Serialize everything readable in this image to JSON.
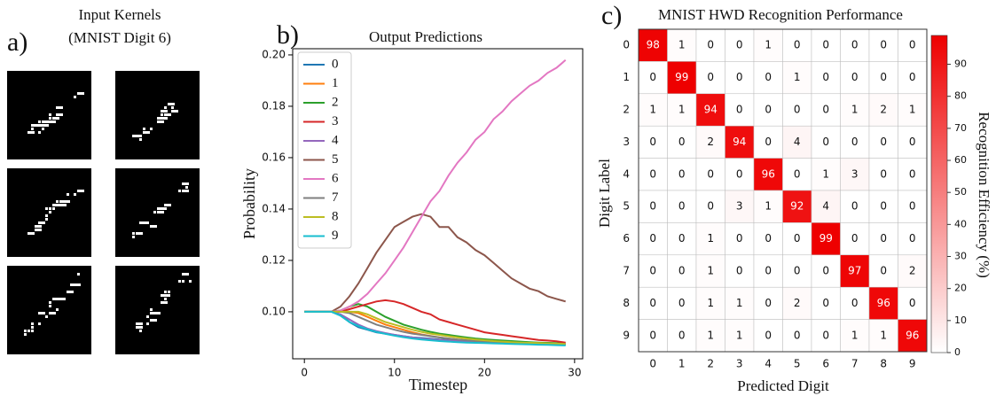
{
  "chart_data": [
    {
      "type": "image",
      "panel_label": "a)",
      "title": "Input Kernels",
      "subtitle": "(MNIST Digit 6)"
    },
    {
      "type": "line",
      "panel_label": "b)",
      "title": "Output Predictions",
      "x_label": "Timestep",
      "y_label": "Probability",
      "x": [
        0,
        1,
        2,
        3,
        4,
        5,
        6,
        7,
        8,
        9,
        10,
        11,
        12,
        13,
        14,
        15,
        16,
        17,
        18,
        19,
        20,
        21,
        22,
        23,
        24,
        25,
        26,
        27,
        28,
        29
      ],
      "xlim": [
        -1.3,
        30.9
      ],
      "xticks": [
        0,
        10,
        20,
        30
      ],
      "ylim": [
        0.0817,
        0.2024
      ],
      "yticks": [
        {
          "value": 0.1,
          "label": "0.10"
        },
        0.12,
        0.14,
        0.16,
        0.18,
        {
          "value": 0.2,
          "label": "0.20"
        }
      ],
      "legend": "upper-left",
      "series": [
        {
          "name": "0",
          "color": "#1f77b4",
          "values": [
            0.1,
            0.1,
            0.1,
            0.1,
            0.099,
            0.096,
            0.094,
            0.093,
            0.092,
            0.0915,
            0.091,
            0.0905,
            0.09,
            0.0898,
            0.0895,
            0.0892,
            0.089,
            0.0888,
            0.0886,
            0.0884,
            0.0882,
            0.088,
            0.0879,
            0.0878,
            0.0877,
            0.0876,
            0.0875,
            0.0874,
            0.0873,
            0.0872
          ]
        },
        {
          "name": "1",
          "color": "#ff7f0e",
          "values": [
            0.1,
            0.1,
            0.1,
            0.1,
            0.1,
            0.1,
            0.0995,
            0.098,
            0.0965,
            0.095,
            0.094,
            0.093,
            0.092,
            0.0912,
            0.0906,
            0.09,
            0.0896,
            0.0892,
            0.0889,
            0.0886,
            0.0884,
            0.0882,
            0.088,
            0.0879,
            0.0878,
            0.0877,
            0.0876,
            0.0875,
            0.0874,
            0.0873
          ]
        },
        {
          "name": "2",
          "color": "#2ca02c",
          "values": [
            0.1,
            0.1,
            0.1,
            0.1,
            0.1005,
            0.102,
            0.103,
            0.102,
            0.1,
            0.098,
            0.0965,
            0.095,
            0.094,
            0.093,
            0.0922,
            0.0915,
            0.091,
            0.0905,
            0.09,
            0.0896,
            0.0893,
            0.089,
            0.0888,
            0.0886,
            0.0884,
            0.0882,
            0.088,
            0.0879,
            0.0878,
            0.0877
          ]
        },
        {
          "name": "3",
          "color": "#d62728",
          "values": [
            0.1,
            0.1,
            0.1,
            0.1,
            0.1,
            0.101,
            0.102,
            0.103,
            0.104,
            0.1045,
            0.104,
            0.103,
            0.1015,
            0.1,
            0.099,
            0.097,
            0.096,
            0.095,
            0.094,
            0.093,
            0.092,
            0.0915,
            0.091,
            0.0905,
            0.09,
            0.0895,
            0.089,
            0.0888,
            0.0885,
            0.088
          ]
        },
        {
          "name": "4",
          "color": "#9467bd",
          "values": [
            0.1,
            0.1,
            0.1,
            0.1,
            0.099,
            0.097,
            0.095,
            0.0935,
            0.0925,
            0.0917,
            0.091,
            0.0905,
            0.09,
            0.0896,
            0.0893,
            0.089,
            0.0888,
            0.0886,
            0.0884,
            0.0882,
            0.088,
            0.0879,
            0.0878,
            0.0877,
            0.0876,
            0.0875,
            0.0874,
            0.0873,
            0.0872,
            0.0871
          ]
        },
        {
          "name": "5",
          "color": "#8c564b",
          "values": [
            0.1,
            0.1,
            0.1,
            0.1,
            0.102,
            0.106,
            0.111,
            0.117,
            0.123,
            0.128,
            0.133,
            0.135,
            0.137,
            0.138,
            0.137,
            0.133,
            0.133,
            0.129,
            0.127,
            0.124,
            0.122,
            0.119,
            0.116,
            0.113,
            0.111,
            0.109,
            0.108,
            0.106,
            0.105,
            0.104
          ]
        },
        {
          "name": "6",
          "color": "#e377c2",
          "values": [
            0.1,
            0.1,
            0.1,
            0.1,
            0.1005,
            0.102,
            0.104,
            0.107,
            0.111,
            0.115,
            0.12,
            0.125,
            0.131,
            0.137,
            0.143,
            0.147,
            0.153,
            0.158,
            0.162,
            0.167,
            0.17,
            0.175,
            0.178,
            0.182,
            0.185,
            0.188,
            0.19,
            0.193,
            0.195,
            0.198
          ]
        },
        {
          "name": "7",
          "color": "#7f7f7f",
          "values": [
            0.1,
            0.1,
            0.1,
            0.1,
            0.1,
            0.0995,
            0.098,
            0.0965,
            0.095,
            0.094,
            0.093,
            0.0922,
            0.0915,
            0.091,
            0.0905,
            0.09,
            0.0896,
            0.0892,
            0.0889,
            0.0886,
            0.0884,
            0.0882,
            0.088,
            0.0879,
            0.0878,
            0.0877,
            0.0876,
            0.0875,
            0.0874,
            0.0873
          ]
        },
        {
          "name": "8",
          "color": "#bcbd22",
          "values": [
            0.1,
            0.1,
            0.1,
            0.1,
            0.1,
            0.1,
            0.1,
            0.099,
            0.0975,
            0.096,
            0.095,
            0.094,
            0.093,
            0.0922,
            0.0915,
            0.091,
            0.0905,
            0.09,
            0.0896,
            0.0892,
            0.0889,
            0.0886,
            0.0884,
            0.0882,
            0.088,
            0.0879,
            0.0878,
            0.0877,
            0.0876,
            0.0875
          ]
        },
        {
          "name": "9",
          "color": "#17becf",
          "values": [
            0.1,
            0.1,
            0.1,
            0.1,
            0.0985,
            0.096,
            0.0945,
            0.0932,
            0.0922,
            0.0914,
            0.0907,
            0.0901,
            0.0896,
            0.0892,
            0.0889,
            0.0886,
            0.0884,
            0.0882,
            0.088,
            0.0879,
            0.0878,
            0.0877,
            0.0876,
            0.0875,
            0.0874,
            0.0873,
            0.0872,
            0.0871,
            0.087,
            0.0869
          ]
        }
      ]
    },
    {
      "type": "heatmap",
      "panel_label": "c)",
      "title": "MNIST HWD Recognition Performance",
      "x_label": "Predicted Digit",
      "y_label": "Digit Label",
      "colorbar_label": "Recognition Efficiency (%)",
      "x_categories": [
        "0",
        "1",
        "2",
        "3",
        "4",
        "5",
        "6",
        "7",
        "8",
        "9"
      ],
      "y_categories": [
        "0",
        "1",
        "2",
        "3",
        "4",
        "5",
        "6",
        "7",
        "8",
        "9"
      ],
      "clim": [
        0,
        99
      ],
      "cticks": [
        0,
        10,
        20,
        30,
        40,
        50,
        60,
        70,
        80,
        90
      ],
      "color": "#ee0000",
      "matrix": [
        [
          98,
          1,
          0,
          0,
          1,
          0,
          0,
          0,
          0,
          0
        ],
        [
          0,
          99,
          0,
          0,
          0,
          1,
          0,
          0,
          0,
          0
        ],
        [
          1,
          1,
          94,
          0,
          0,
          0,
          0,
          1,
          2,
          1
        ],
        [
          0,
          0,
          2,
          94,
          0,
          4,
          0,
          0,
          0,
          0
        ],
        [
          0,
          0,
          0,
          0,
          96,
          0,
          1,
          3,
          0,
          0
        ],
        [
          0,
          0,
          0,
          3,
          1,
          92,
          4,
          0,
          0,
          0
        ],
        [
          0,
          0,
          1,
          0,
          0,
          0,
          99,
          0,
          0,
          0
        ],
        [
          0,
          0,
          1,
          0,
          0,
          0,
          0,
          97,
          0,
          2
        ],
        [
          0,
          0,
          1,
          1,
          0,
          2,
          0,
          0,
          96,
          0
        ],
        [
          0,
          0,
          1,
          1,
          0,
          0,
          0,
          1,
          1,
          96
        ]
      ]
    }
  ]
}
